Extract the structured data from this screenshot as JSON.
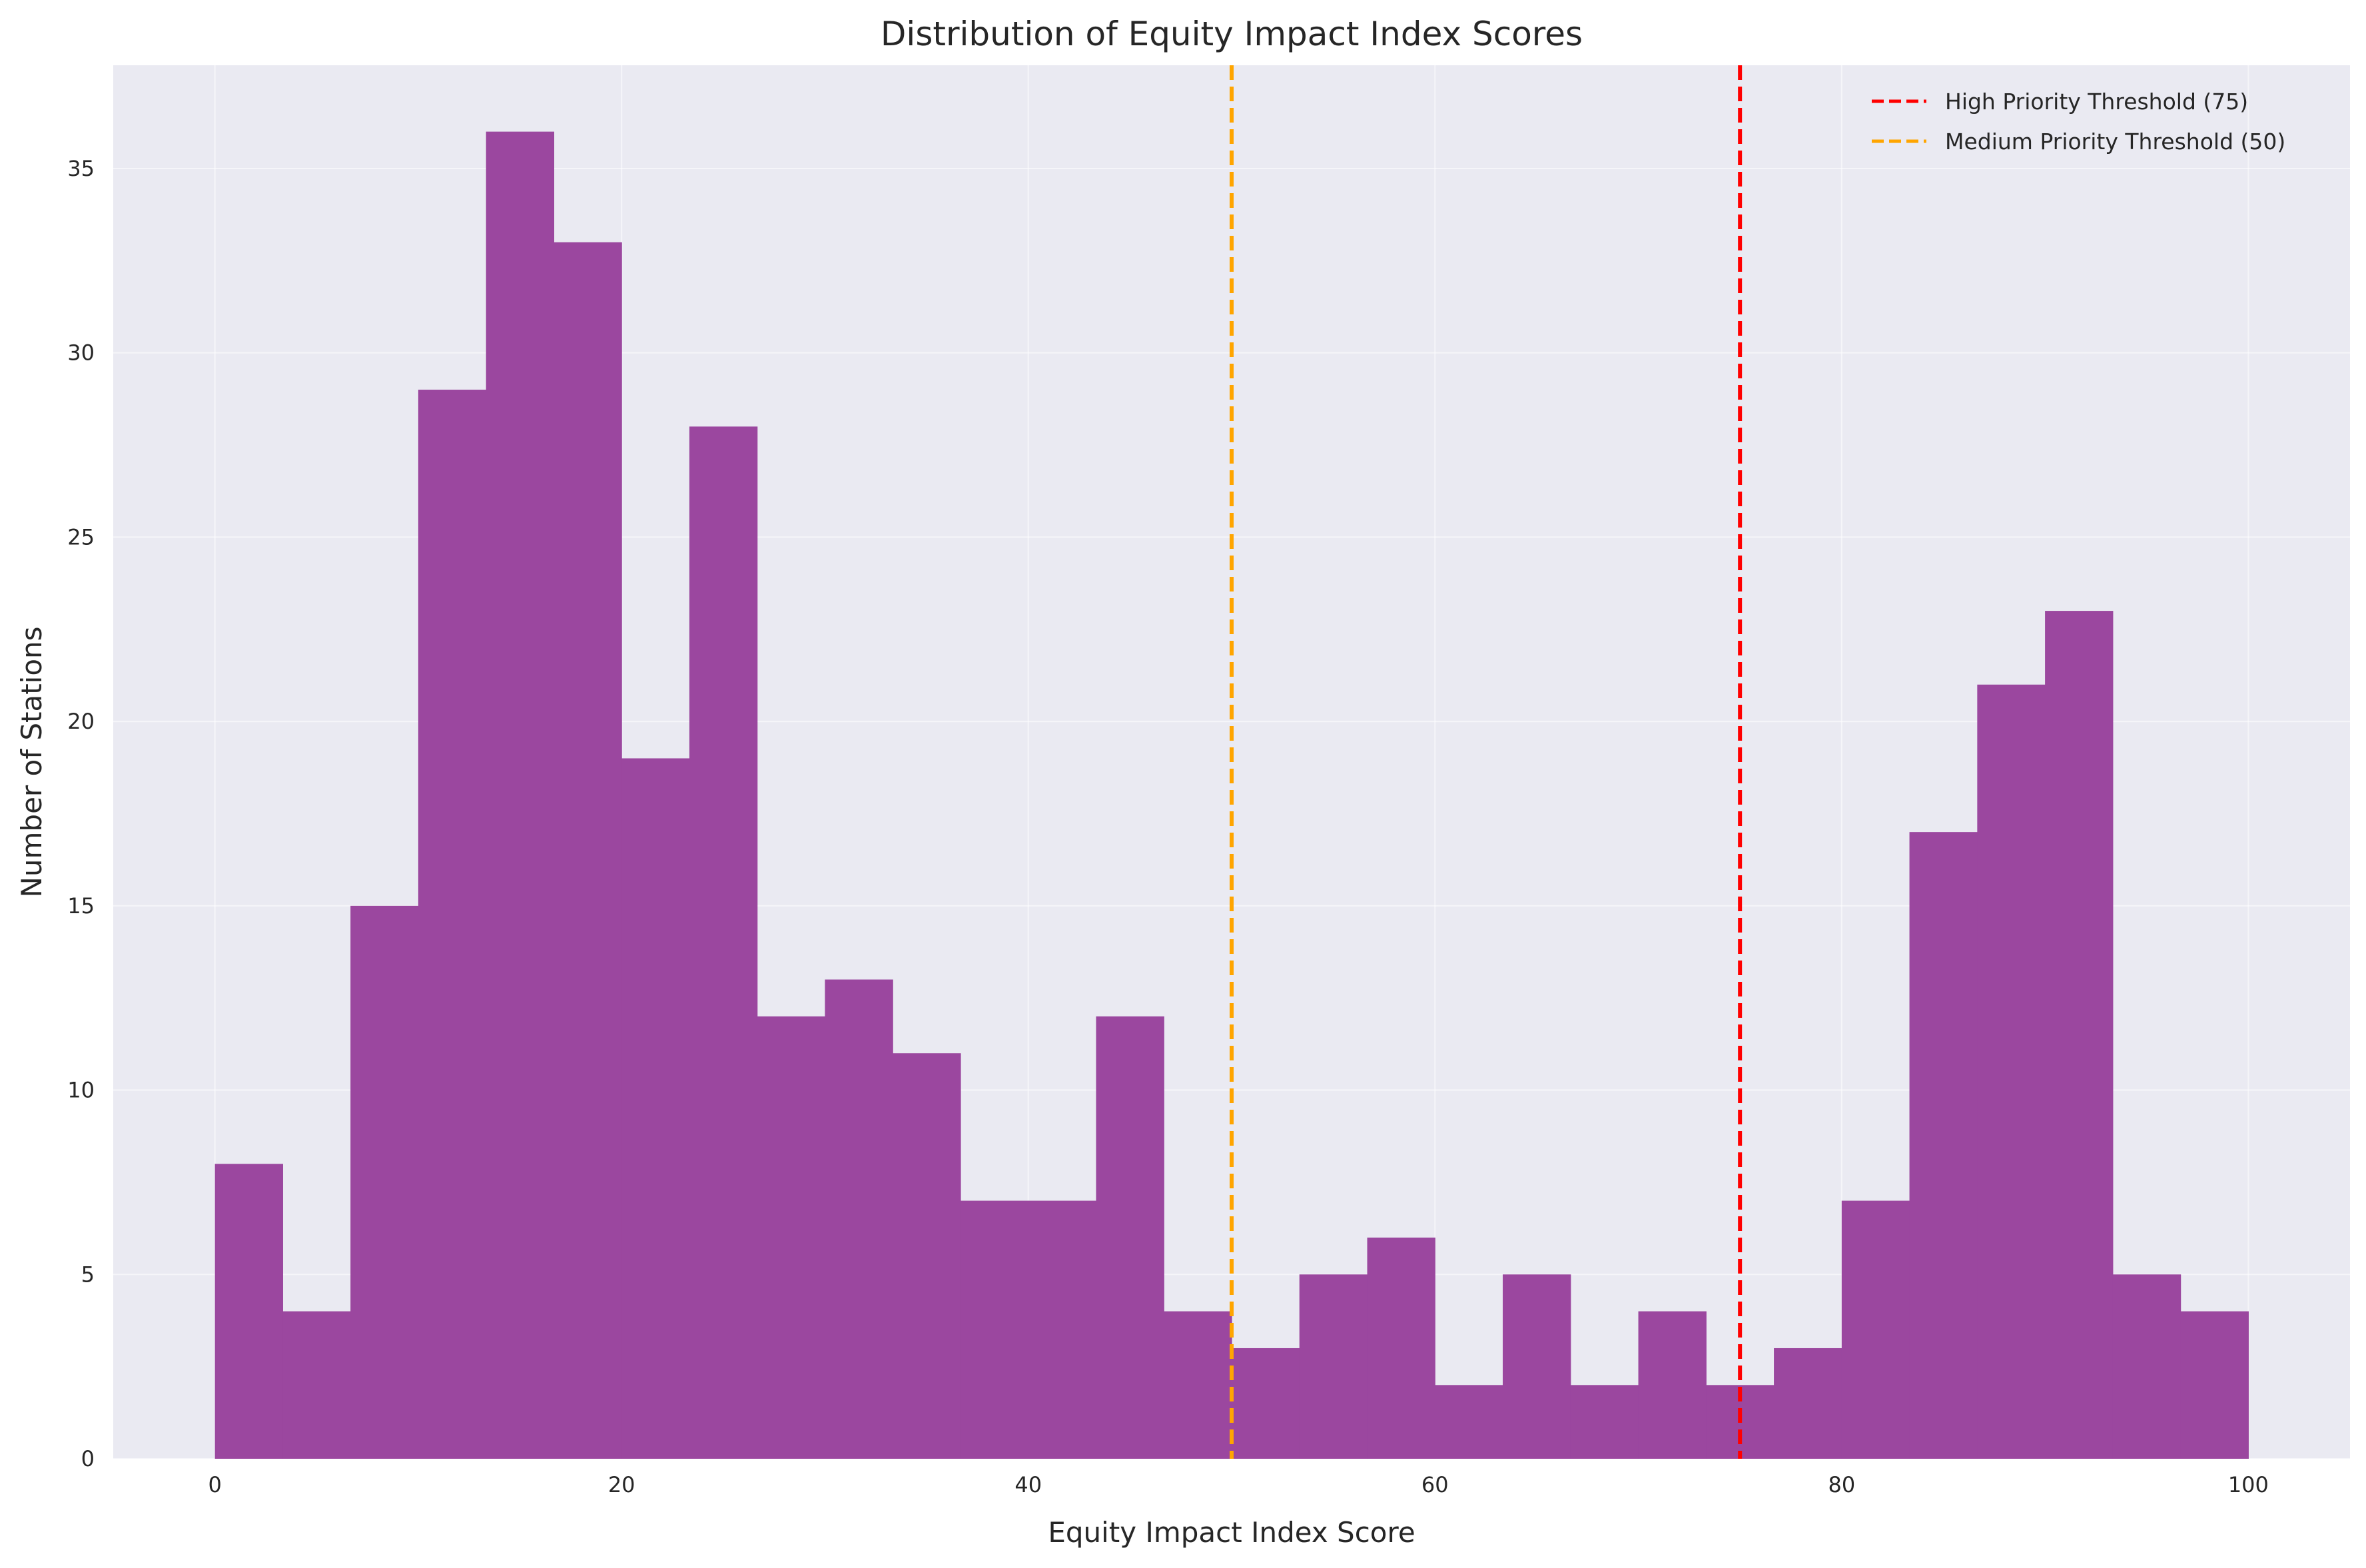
{
  "chart_data": {
    "type": "bar",
    "title": "Distribution of Equity Impact Index Scores",
    "xlabel": "Equity Impact Index Score",
    "ylabel": "Number of Stations",
    "xlim": [
      -5,
      105
    ],
    "ylim": [
      0,
      37.8
    ],
    "x_ticks": [
      0,
      20,
      40,
      60,
      80,
      100
    ],
    "y_ticks": [
      0,
      5,
      10,
      15,
      20,
      25,
      30,
      35
    ],
    "grid": true,
    "legend_position": "top-right",
    "bar_color": "#9b479f",
    "bin_start": 0,
    "bin_width": 3.3333,
    "bin_edges": [
      0,
      3.333,
      6.667,
      10,
      13.333,
      16.667,
      20,
      23.333,
      26.667,
      30,
      33.333,
      36.667,
      40,
      43.333,
      46.667,
      50,
      53.333,
      56.667,
      60,
      63.333,
      66.667,
      70,
      73.333,
      76.667,
      80,
      83.333,
      86.667,
      90,
      93.333,
      96.667,
      100
    ],
    "counts": [
      8,
      4,
      15,
      29,
      36,
      33,
      19,
      28,
      12,
      13,
      11,
      7,
      7,
      12,
      4,
      3,
      5,
      6,
      2,
      5,
      2,
      4,
      2,
      3,
      7,
      17,
      21,
      23,
      5,
      4
    ],
    "thresholds": [
      {
        "name": "High Priority Threshold (75)",
        "value": 75,
        "color": "#ff0000"
      },
      {
        "name": "Medium Priority Threshold (50)",
        "value": 50,
        "color": "#ffa500"
      }
    ]
  }
}
